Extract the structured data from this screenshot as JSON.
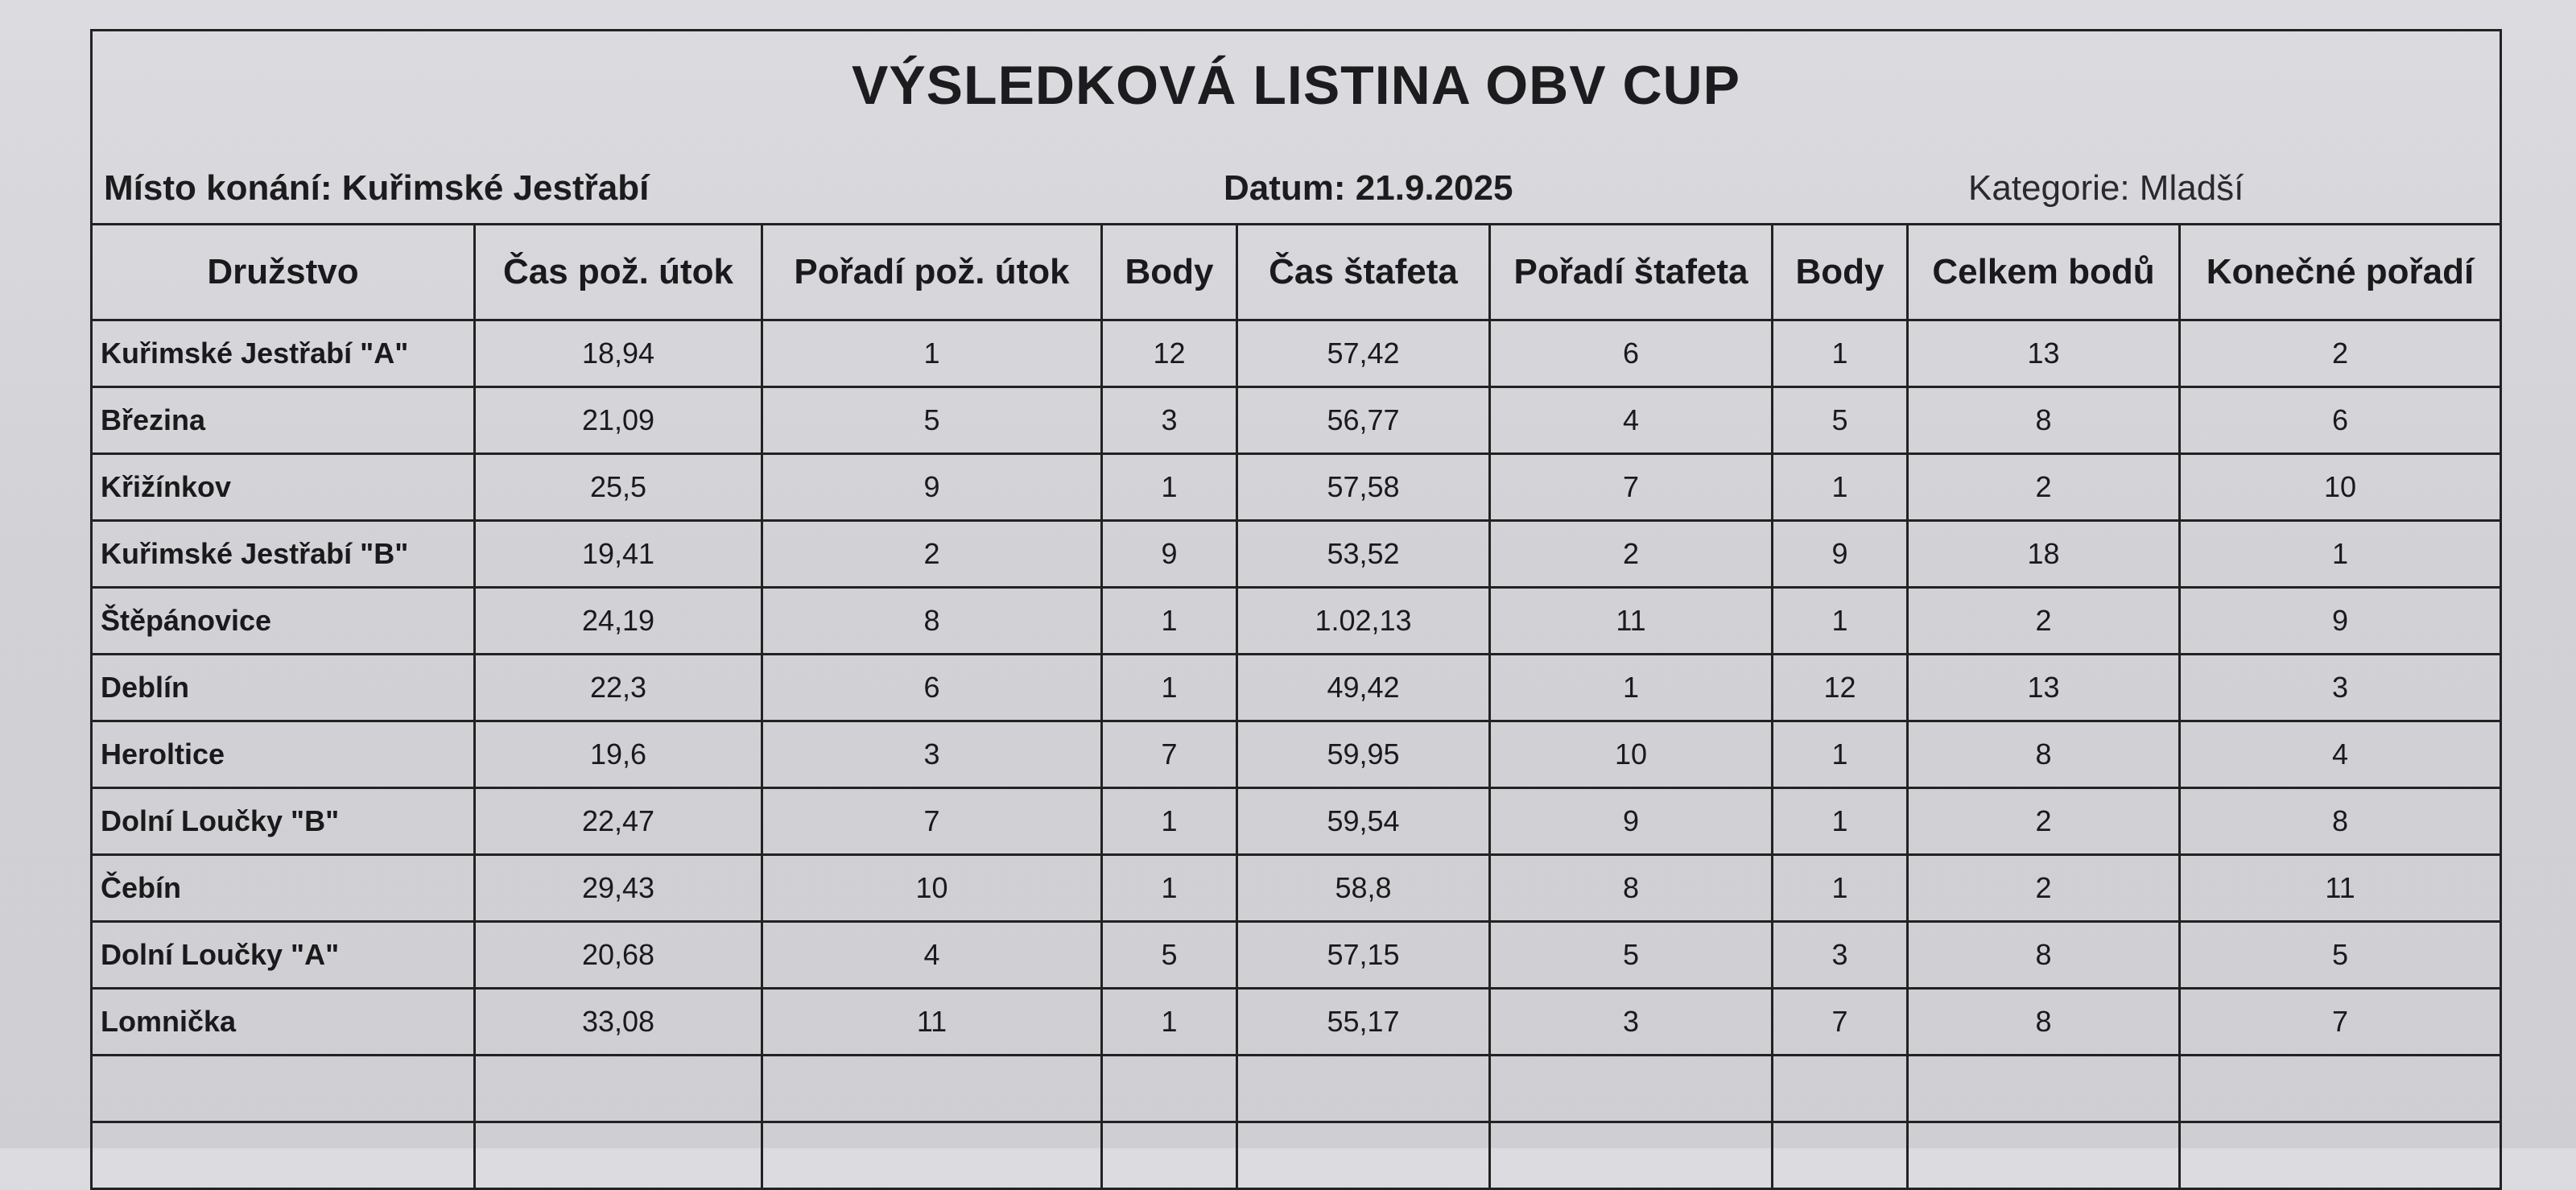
{
  "title": "VÝSLEDKOVÁ LISTINA OBV CUP",
  "place": "Místo konání: Kuřimské Jestřabí",
  "date": "Datum: 21.9.2025",
  "category": "Kategorie: Mladší",
  "columns": [
    "Družstvo",
    "Čas pož. útok",
    "Pořadí pož. útok",
    "Body",
    "Čas štafeta",
    "Pořadí štafeta",
    "Body",
    "Celkem bodů",
    "Konečné pořadí"
  ],
  "rows": [
    [
      "Kuřimské Jestřabí \"A\"",
      "18,94",
      "1",
      "12",
      "57,42",
      "6",
      "1",
      "13",
      "2"
    ],
    [
      "Březina",
      "21,09",
      "5",
      "3",
      "56,77",
      "4",
      "5",
      "8",
      "6"
    ],
    [
      "Křižínkov",
      "25,5",
      "9",
      "1",
      "57,58",
      "7",
      "1",
      "2",
      "10"
    ],
    [
      "Kuřimské Jestřabí \"B\"",
      "19,41",
      "2",
      "9",
      "53,52",
      "2",
      "9",
      "18",
      "1"
    ],
    [
      "Štěpánovice",
      "24,19",
      "8",
      "1",
      "1.02,13",
      "11",
      "1",
      "2",
      "9"
    ],
    [
      "Deblín",
      "22,3",
      "6",
      "1",
      "49,42",
      "1",
      "12",
      "13",
      "3"
    ],
    [
      "Heroltice",
      "19,6",
      "3",
      "7",
      "59,95",
      "10",
      "1",
      "8",
      "4"
    ],
    [
      "Dolní Loučky \"B\"",
      "22,47",
      "7",
      "1",
      "59,54",
      "9",
      "1",
      "2",
      "8"
    ],
    [
      "Čebín",
      "29,43",
      "10",
      "1",
      "58,8",
      "8",
      "1",
      "2",
      "11"
    ],
    [
      "Dolní Loučky \"A\"",
      "20,68",
      "4",
      "5",
      "57,15",
      "5",
      "3",
      "8",
      "5"
    ],
    [
      "Lomnička",
      "33,08",
      "11",
      "1",
      "55,17",
      "3",
      "7",
      "8",
      "7"
    ]
  ]
}
